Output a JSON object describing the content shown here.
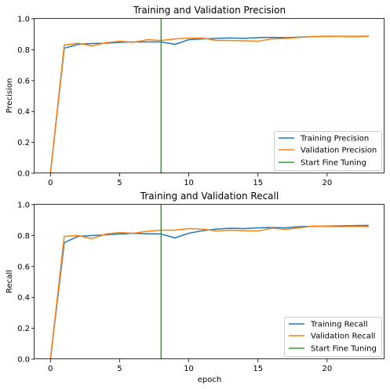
{
  "chart_data": [
    {
      "type": "line",
      "title": "Training and Validation Precision",
      "xlabel": "",
      "ylabel": "Precision",
      "xlim": [
        -1.15,
        24.15
      ],
      "ylim": [
        0,
        1.0
      ],
      "xticks": [
        0,
        5,
        10,
        15,
        20
      ],
      "yticks": [
        0.0,
        0.2,
        0.4,
        0.6,
        0.8,
        1.0
      ],
      "legend_loc": "lower right",
      "x": [
        0,
        1,
        2,
        3,
        4,
        5,
        6,
        7,
        8,
        9,
        10,
        11,
        12,
        13,
        14,
        15,
        16,
        17,
        18,
        19,
        20,
        21,
        22,
        23
      ],
      "series": [
        {
          "name": "Training Precision",
          "color": "#1f77b4",
          "values": [
            0.0,
            0.81,
            0.835,
            0.84,
            0.842,
            0.848,
            0.85,
            0.85,
            0.85,
            0.835,
            0.865,
            0.87,
            0.873,
            0.876,
            0.874,
            0.878,
            0.88,
            0.878,
            0.882,
            0.885,
            0.887,
            0.887,
            0.886,
            0.888
          ]
        },
        {
          "name": "Validation Precision",
          "color": "#ff7f0e",
          "values": [
            0.0,
            0.83,
            0.842,
            0.825,
            0.845,
            0.855,
            0.848,
            0.865,
            0.86,
            0.87,
            0.875,
            0.875,
            0.86,
            0.86,
            0.858,
            0.855,
            0.87,
            0.873,
            0.88,
            0.885,
            0.885,
            0.887,
            0.884,
            0.887
          ]
        }
      ],
      "vlines": [
        {
          "name": "Start Fine Tuning",
          "color": "#2ca02c",
          "x": 8
        }
      ]
    },
    {
      "type": "line",
      "title": "Training and Validation Recall",
      "xlabel": "epoch",
      "ylabel": "Recall",
      "xlim": [
        -1.15,
        24.15
      ],
      "ylim": [
        0,
        1.0
      ],
      "xticks": [
        0,
        5,
        10,
        15,
        20
      ],
      "yticks": [
        0.0,
        0.2,
        0.4,
        0.6,
        0.8,
        1.0
      ],
      "legend_loc": "lower right",
      "x": [
        0,
        1,
        2,
        3,
        4,
        5,
        6,
        7,
        8,
        9,
        10,
        11,
        12,
        13,
        14,
        15,
        16,
        17,
        18,
        19,
        20,
        21,
        22,
        23
      ],
      "series": [
        {
          "name": "Training Recall",
          "color": "#1f77b4",
          "values": [
            0.0,
            0.755,
            0.795,
            0.8,
            0.805,
            0.81,
            0.815,
            0.812,
            0.81,
            0.785,
            0.815,
            0.832,
            0.842,
            0.848,
            0.845,
            0.85,
            0.852,
            0.85,
            0.858,
            0.86,
            0.862,
            0.863,
            0.865,
            0.866
          ]
        },
        {
          "name": "Validation Recall",
          "color": "#ff7f0e",
          "values": [
            0.0,
            0.795,
            0.8,
            0.78,
            0.81,
            0.82,
            0.815,
            0.828,
            0.835,
            0.835,
            0.845,
            0.842,
            0.83,
            0.835,
            0.832,
            0.83,
            0.848,
            0.84,
            0.85,
            0.862,
            0.86,
            0.858,
            0.86,
            0.858
          ]
        }
      ],
      "vlines": [
        {
          "name": "Start Fine Tuning",
          "color": "#2ca02c",
          "x": 8
        }
      ]
    }
  ]
}
